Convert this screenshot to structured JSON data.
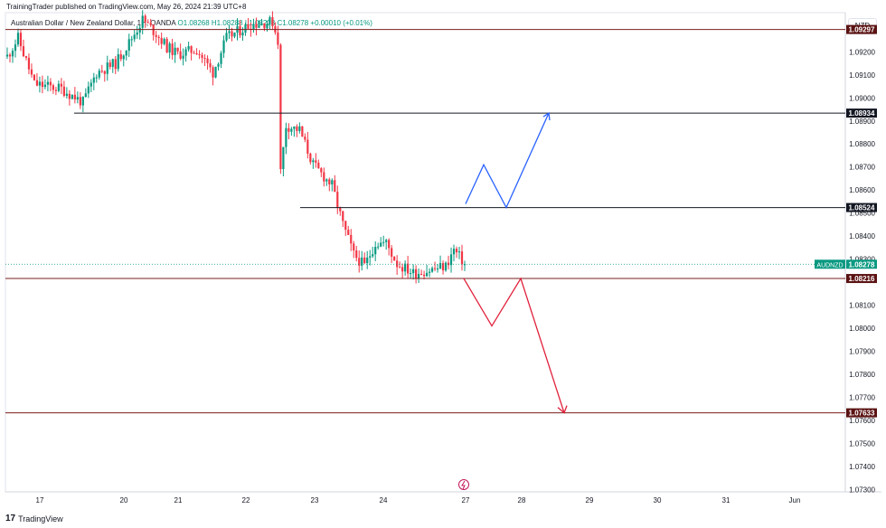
{
  "header": {
    "published_text": "TrainingTrader published on TradingView.com, May 26, 2024 21:39 UTC+8"
  },
  "legend": {
    "symbol_text": "Australian Dollar / New Zealand Dollar, 1H, OANDA",
    "open": "O1.08268",
    "high": "H1.08288",
    "low": "L1.08228",
    "close": "C1.08278",
    "change": "+0.00010 (+0.01%)"
  },
  "currency_button": "NZD",
  "footer": {
    "logo_mark": "17",
    "brand": "TradingView"
  },
  "price_marker": {
    "symbol": "AUDNZD",
    "value": "1.08278"
  },
  "colors": {
    "bull": "#089981",
    "bear": "#f23645",
    "resistance_line": "#7a1e1e",
    "support_line": "#131722",
    "bull_path": "#2962ff",
    "bear_path": "#e0203a"
  },
  "chart_data": {
    "type": "candlestick",
    "instrument": "AUDNZD",
    "timeframe": "1H",
    "y_axis": {
      "ylim": [
        1.0729,
        1.0937
      ],
      "ticks": [
        "1.09200",
        "1.09100",
        "1.09000",
        "1.08900",
        "1.08800",
        "1.08700",
        "1.08600",
        "1.08500",
        "1.08400",
        "1.08300",
        "1.08100",
        "1.08000",
        "1.07900",
        "1.07800",
        "1.07700",
        "1.07600",
        "1.07500",
        "1.07400",
        "1.07300"
      ]
    },
    "x_axis": {
      "tick_labels": [
        "17",
        "20",
        "21",
        "22",
        "23",
        "24",
        "27",
        "28",
        "29",
        "30",
        "31",
        "Jun"
      ]
    },
    "horizontal_levels": [
      {
        "price": 1.09297,
        "label": "1.09297",
        "kind": "resistance"
      },
      {
        "price": 1.08934,
        "label": "1.08934",
        "kind": "support"
      },
      {
        "price": 1.08524,
        "label": "1.08524",
        "kind": "support"
      },
      {
        "price": 1.08216,
        "label": "1.08216",
        "kind": "resistance"
      },
      {
        "price": 1.07633,
        "label": "1.07633",
        "kind": "resistance"
      }
    ],
    "last_price": 1.08278,
    "price_path_anchors": [
      {
        "t": 0,
        "p": 1.0918
      },
      {
        "t": 4,
        "p": 1.0926
      },
      {
        "t": 10,
        "p": 1.0906
      },
      {
        "t": 20,
        "p": 1.0904
      },
      {
        "t": 28,
        "p": 1.0898
      },
      {
        "t": 33,
        "p": 1.0911
      },
      {
        "t": 40,
        "p": 1.0915
      },
      {
        "t": 45,
        "p": 1.0924
      },
      {
        "t": 50,
        "p": 1.0934
      },
      {
        "t": 55,
        "p": 1.0928
      },
      {
        "t": 59,
        "p": 1.0922
      },
      {
        "t": 63,
        "p": 1.0919
      },
      {
        "t": 70,
        "p": 1.0921
      },
      {
        "t": 76,
        "p": 1.0911
      },
      {
        "t": 81,
        "p": 1.0926
      },
      {
        "t": 90,
        "p": 1.0932
      },
      {
        "t": 98,
        "p": 1.0933
      },
      {
        "t": 100,
        "p": 1.0925
      },
      {
        "t": 101,
        "p": 1.0868
      },
      {
        "t": 103,
        "p": 1.0888
      },
      {
        "t": 108,
        "p": 1.0886
      },
      {
        "t": 113,
        "p": 1.0871
      },
      {
        "t": 120,
        "p": 1.0862
      },
      {
        "t": 124,
        "p": 1.0845
      },
      {
        "t": 128,
        "p": 1.0832
      },
      {
        "t": 132,
        "p": 1.0827
      },
      {
        "t": 136,
        "p": 1.0837
      },
      {
        "t": 140,
        "p": 1.0837
      },
      {
        "t": 144,
        "p": 1.0828
      },
      {
        "t": 150,
        "p": 1.0824
      },
      {
        "t": 155,
        "p": 1.0825
      },
      {
        "t": 162,
        "p": 1.0827
      },
      {
        "t": 165,
        "p": 1.0834
      },
      {
        "t": 169,
        "p": 1.0828
      }
    ],
    "projections": [
      {
        "name": "bullish",
        "points": [
          {
            "date": "27",
            "p": 1.0854
          },
          {
            "date": "27+",
            "p": 1.0871
          },
          {
            "date": "27++",
            "p": 1.08524
          },
          {
            "date": "28+",
            "p": 1.08934
          }
        ]
      },
      {
        "name": "bearish",
        "points": [
          {
            "date": "27",
            "p": 1.08216
          },
          {
            "date": "27+",
            "p": 1.0801
          },
          {
            "date": "28",
            "p": 1.08216
          },
          {
            "date": "28+",
            "p": 1.07633
          }
        ]
      }
    ]
  }
}
